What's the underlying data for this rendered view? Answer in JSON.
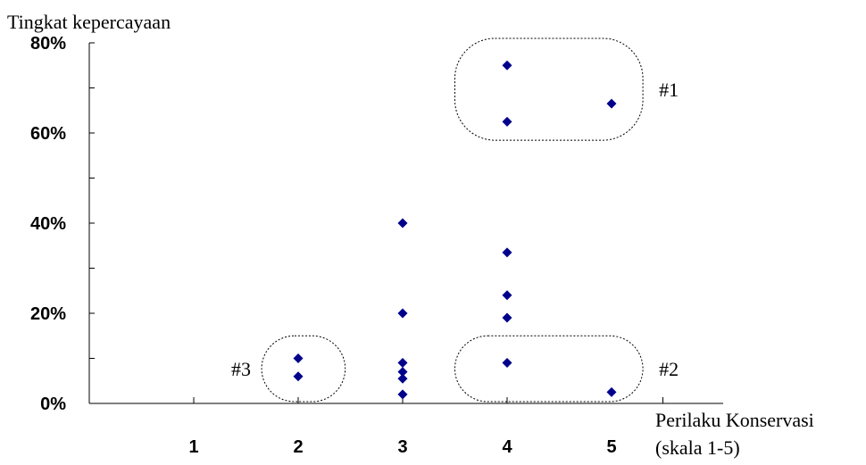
{
  "chart_data": {
    "type": "scatter",
    "ylabel": "Tingkat kepercayaan",
    "xlabel_lines": [
      "Perilaku Konservasi",
      "(skala 1-5)"
    ],
    "xlim": [
      0,
      5.5
    ],
    "ylim": [
      0,
      80
    ],
    "x_ticks": [
      "1",
      "2",
      "3",
      "4",
      "5"
    ],
    "y_ticks": [
      "0%",
      "20%",
      "40%",
      "60%",
      "80%"
    ],
    "grid": false,
    "marker_color": "#00008b",
    "points": [
      {
        "x": 2,
        "y": 10
      },
      {
        "x": 2,
        "y": 6
      },
      {
        "x": 3,
        "y": 40
      },
      {
        "x": 3,
        "y": 20
      },
      {
        "x": 3,
        "y": 9
      },
      {
        "x": 3,
        "y": 7
      },
      {
        "x": 3,
        "y": 5.5
      },
      {
        "x": 3,
        "y": 2
      },
      {
        "x": 4,
        "y": 75
      },
      {
        "x": 4,
        "y": 62.5
      },
      {
        "x": 4,
        "y": 33.5
      },
      {
        "x": 4,
        "y": 24
      },
      {
        "x": 4,
        "y": 19
      },
      {
        "x": 4,
        "y": 9
      },
      {
        "x": 5,
        "y": 66.5
      },
      {
        "x": 5,
        "y": 2.5
      }
    ],
    "groups": [
      {
        "label": "#1",
        "x_range": [
          3.5,
          5.3
        ],
        "y_range": [
          58,
          81
        ]
      },
      {
        "label": "#2",
        "x_range": [
          3.5,
          5.3
        ],
        "y_range": [
          0,
          15
        ]
      },
      {
        "label": "#3",
        "x_range": [
          1.65,
          2.45
        ],
        "y_range": [
          0,
          15
        ]
      }
    ]
  }
}
